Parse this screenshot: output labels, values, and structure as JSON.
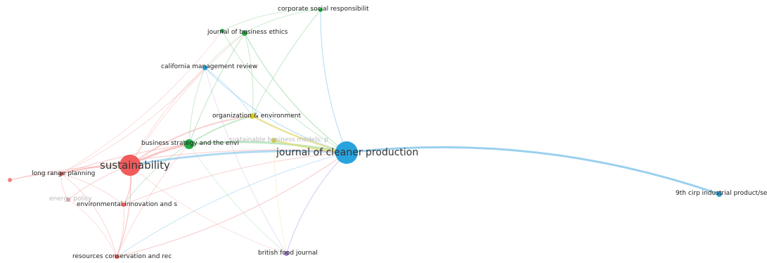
{
  "colors": {
    "red": "#f15b5b",
    "blue": "#29a3dd",
    "green": "#1fae45",
    "yellow": "#d9cf2a",
    "purple": "#a57fd4",
    "red_edge": "#f4a3a3",
    "blue_edge": "#8fcbec",
    "green_edge": "#8fd69c",
    "yellow_edge": "#e3dd7d",
    "purple_edge": "#c9b3e8"
  },
  "nodes": {
    "corporate_social": {
      "label": "corporate social responsibilit",
      "color": "green"
    },
    "journal_business_ethics": {
      "label": "journal of business ethics",
      "color": "green"
    },
    "california_management": {
      "label": "california management review",
      "color": "blue"
    },
    "organization_environment": {
      "label": "organization & environment",
      "color": "yellow"
    },
    "sustainable_business_models": {
      "label": "sustainable business models: p",
      "color": "yellow"
    },
    "business_strategy": {
      "label": "business strategy and the envi",
      "color": "green"
    },
    "journal_cleaner_production": {
      "label": "journal of cleaner production",
      "color": "blue"
    },
    "sustainability": {
      "label": "sustainability",
      "color": "red"
    },
    "long_range_planning": {
      "label": "long range planning",
      "color": "red"
    },
    "faded_left": {
      "label": "",
      "color": "red"
    },
    "energy_policy": {
      "label": "energy policy",
      "color": "red"
    },
    "environmental_innovation": {
      "label": "environmental innovation and s",
      "color": "red"
    },
    "resources_conservation": {
      "label": "resources conservation and rec",
      "color": "red"
    },
    "british_food_journal": {
      "label": "british food journal",
      "color": "purple"
    },
    "cirp_industrial": {
      "label": "9th cirp industrial product/se",
      "color": "blue"
    }
  }
}
